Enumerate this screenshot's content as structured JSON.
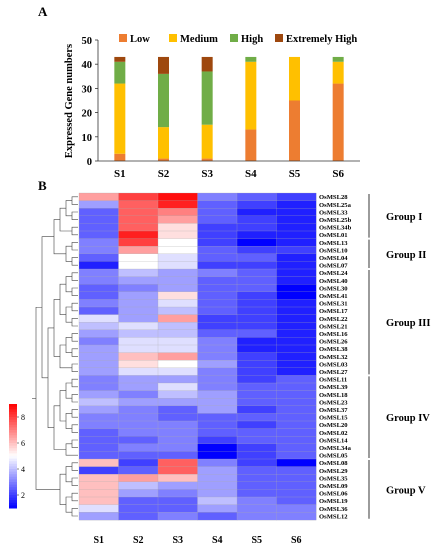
{
  "figure": {
    "panel_a_label": "A",
    "panel_b_label": "B"
  },
  "chart_data": [
    {
      "type": "bar",
      "stacked": true,
      "categories": [
        "S1",
        "S2",
        "S3",
        "S4",
        "S5",
        "S6"
      ],
      "series": [
        {
          "name": "Low",
          "color": "#ED7D31",
          "values": [
            3,
            1,
            1,
            13,
            25,
            32
          ]
        },
        {
          "name": "Medium",
          "color": "#FFC000",
          "values": [
            29,
            13,
            14,
            28,
            18,
            9
          ]
        },
        {
          "name": "High",
          "color": "#70AD47",
          "values": [
            9,
            22,
            22,
            2,
            0,
            2
          ]
        },
        {
          "name": "Extremely High",
          "color": "#9E480E",
          "values": [
            2,
            7,
            6,
            0,
            0,
            0
          ]
        }
      ],
      "ylabel": "Expressed Gene numbers",
      "xlabel": "",
      "ylim": [
        0,
        50
      ],
      "yticks": [
        0,
        10,
        20,
        30,
        40,
        50
      ],
      "legend_position": "top",
      "grid": false
    },
    {
      "type": "heatmap",
      "columns": [
        "S1",
        "S2",
        "S3",
        "S4",
        "S5",
        "S6"
      ],
      "rows": [
        "OsMSL28",
        "OsMSL25a",
        "OsMSL33",
        "OsMSL25b",
        "OsMSL34b",
        "OsMSL01",
        "OsMSL13",
        "OsMSL10",
        "OsMSL04",
        "OsMSL07",
        "OsMSL24",
        "OsMSL40",
        "OsMSL30",
        "OsMSL41",
        "OsMSL31",
        "OsMSL17",
        "OsMSL22",
        "OsMSL21",
        "OsMSL16",
        "OsMSL26",
        "OsMSL38",
        "OsMSL32",
        "OsMSL03",
        "OsMSL27",
        "OsMSL11",
        "OsMSL39",
        "OsMSL18",
        "OsMSL23",
        "OsMSL37",
        "OsMSL15",
        "OsMSL20",
        "OsMSL02",
        "OsMSL14",
        "OsMSL34a",
        "OsMSL05",
        "OsMSL08",
        "OsMSL29",
        "OsMSL35",
        "OsMSL09",
        "OsMSL06",
        "OsMSL19",
        "OsMSL36",
        "OsMSL12"
      ],
      "values": [
        [
          6.5,
          8.0,
          8.8,
          3.0,
          2.5,
          2.0
        ],
        [
          3.5,
          7.5,
          8.5,
          2.5,
          2.0,
          1.5
        ],
        [
          2.5,
          7.5,
          7.0,
          2.5,
          1.5,
          1.5
        ],
        [
          2.5,
          7.5,
          6.5,
          2.5,
          2.0,
          1.5
        ],
        [
          2.5,
          7.5,
          5.5,
          2.0,
          2.0,
          1.5
        ],
        [
          2.5,
          8.5,
          5.5,
          2.0,
          1.5,
          1.5
        ],
        [
          3.0,
          8.0,
          5.0,
          2.0,
          1.0,
          1.5
        ],
        [
          3.0,
          6.5,
          5.0,
          2.5,
          2.0,
          2.0
        ],
        [
          2.5,
          5.0,
          4.5,
          2.5,
          2.5,
          1.5
        ],
        [
          1.5,
          5.0,
          4.5,
          2.0,
          2.0,
          1.5
        ],
        [
          3.0,
          4.0,
          3.5,
          3.0,
          2.5,
          1.5
        ],
        [
          3.0,
          3.5,
          3.5,
          2.5,
          2.5,
          1.5
        ],
        [
          2.5,
          3.0,
          3.5,
          2.5,
          2.5,
          1.0
        ],
        [
          2.5,
          3.5,
          5.5,
          2.5,
          2.0,
          1.0
        ],
        [
          3.0,
          3.5,
          4.5,
          2.5,
          2.0,
          1.5
        ],
        [
          2.5,
          3.5,
          4.0,
          2.5,
          2.0,
          1.5
        ],
        [
          4.5,
          3.5,
          6.5,
          2.0,
          2.0,
          1.5
        ],
        [
          4.0,
          4.5,
          4.0,
          2.0,
          2.0,
          1.5
        ],
        [
          3.5,
          4.0,
          4.0,
          2.5,
          2.5,
          1.5
        ],
        [
          3.0,
          4.5,
          4.5,
          3.0,
          1.5,
          1.5
        ],
        [
          3.5,
          4.5,
          4.5,
          3.0,
          1.5,
          1.5
        ],
        [
          3.5,
          6.0,
          6.5,
          3.0,
          2.0,
          1.5
        ],
        [
          3.5,
          5.5,
          5.0,
          3.5,
          2.0,
          1.5
        ],
        [
          3.5,
          4.5,
          4.5,
          3.0,
          2.0,
          1.5
        ],
        [
          3.0,
          3.5,
          3.5,
          3.0,
          2.0,
          2.5
        ],
        [
          3.0,
          3.5,
          4.5,
          3.0,
          2.5,
          2.5
        ],
        [
          3.5,
          3.0,
          4.0,
          3.5,
          2.5,
          2.5
        ],
        [
          4.0,
          3.5,
          3.5,
          3.5,
          2.5,
          2.5
        ],
        [
          3.5,
          3.0,
          2.5,
          3.5,
          2.0,
          2.5
        ],
        [
          3.0,
          3.0,
          2.5,
          2.5,
          2.5,
          2.5
        ],
        [
          3.0,
          3.0,
          3.0,
          2.5,
          2.0,
          2.5
        ],
        [
          2.5,
          3.0,
          3.0,
          2.5,
          2.5,
          2.5
        ],
        [
          2.5,
          2.5,
          3.0,
          2.0,
          2.5,
          2.5
        ],
        [
          2.5,
          3.0,
          3.0,
          1.0,
          2.0,
          2.5
        ],
        [
          2.5,
          2.5,
          2.5,
          1.0,
          2.0,
          2.5
        ],
        [
          6.0,
          2.0,
          7.5,
          3.0,
          2.0,
          1.0
        ],
        [
          2.0,
          2.5,
          7.5,
          3.5,
          2.5,
          2.5
        ],
        [
          6.0,
          6.5,
          6.0,
          3.5,
          2.5,
          2.5
        ],
        [
          6.0,
          4.0,
          3.5,
          3.5,
          2.5,
          2.5
        ],
        [
          6.0,
          3.5,
          3.0,
          3.5,
          2.5,
          2.5
        ],
        [
          6.0,
          2.5,
          2.5,
          4.0,
          3.0,
          2.5
        ],
        [
          4.5,
          2.5,
          2.5,
          3.5,
          3.0,
          3.0
        ],
        [
          3.5,
          2.5,
          3.0,
          2.5,
          3.0,
          3.0
        ]
      ],
      "color_scale": {
        "min": 1,
        "max": 9,
        "low_color": "#0000FF",
        "mid_color": "#FFFFFF",
        "high_color": "#FF0000"
      },
      "colorbar_ticks": [
        2,
        4,
        6,
        8
      ],
      "groups": [
        {
          "name": "Group I",
          "start": 0,
          "end": 5
        },
        {
          "name": "Group II",
          "start": 6,
          "end": 9
        },
        {
          "name": "Group III",
          "start": 10,
          "end": 23
        },
        {
          "name": "Group IV",
          "start": 24,
          "end": 34
        },
        {
          "name": "Group V",
          "start": 35,
          "end": 42
        }
      ]
    }
  ]
}
